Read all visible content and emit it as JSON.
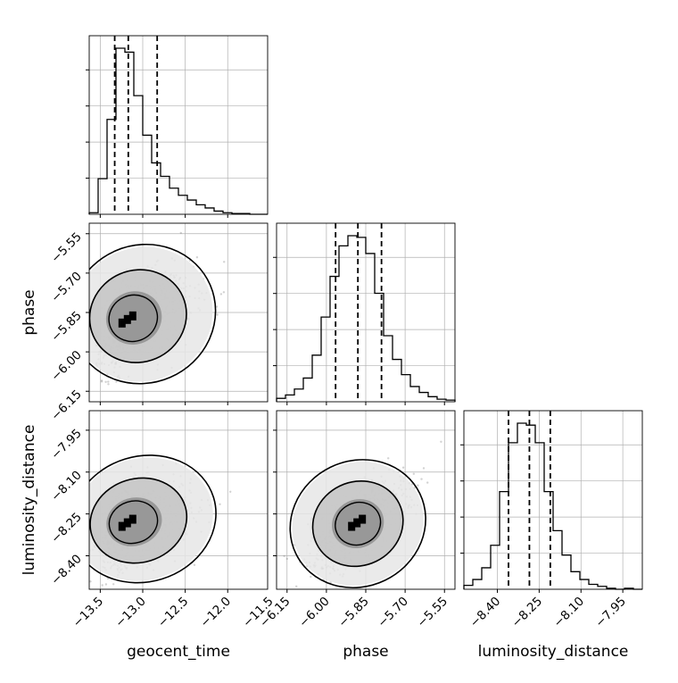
{
  "chart_data": {
    "type": "corner",
    "parameters": [
      "geocent_time",
      "phase",
      "luminosity_distance"
    ],
    "xlabels": [
      "geocent_time",
      "phase",
      "luminosity_distance"
    ],
    "ylabels": [
      "",
      "phase",
      "luminosity_distance"
    ],
    "ranges": [
      [
        -13.63,
        -11.53
      ],
      [
        -6.19,
        -5.51
      ],
      [
        -8.52,
        -7.88
      ]
    ],
    "ticks": [
      {
        "values": [
          -13.5,
          -13.0,
          -12.5,
          -12.0,
          -11.5
        ],
        "labels": [
          "−13.5",
          "−13.0",
          "−12.5",
          "−12.0",
          "−11.5"
        ]
      },
      {
        "values": [
          -6.15,
          -6.0,
          -5.85,
          -5.7,
          -5.55
        ],
        "labels": [
          "−6.15",
          "−6.00",
          "−5.85",
          "−5.70",
          "−5.55"
        ]
      },
      {
        "values": [
          -8.4,
          -8.25,
          -8.1,
          -7.95
        ],
        "labels": [
          "−8.40",
          "−8.25",
          "−8.10",
          "−7.95"
        ]
      }
    ],
    "quantiles": [
      [
        -13.33,
        -13.17,
        -12.83
      ],
      [
        -5.965,
        -5.88,
        -5.79
      ],
      [
        -8.36,
        -8.285,
        -8.21
      ]
    ],
    "histograms": [
      {
        "edges_range": [
          -13.63,
          -11.53
        ],
        "counts": [
          2,
          45,
          120,
          210,
          205,
          150,
          100,
          65,
          48,
          33,
          24,
          18,
          12,
          8,
          4,
          2,
          1,
          1,
          0,
          0
        ]
      },
      {
        "edges_range": [
          -6.19,
          -5.51
        ],
        "counts": [
          4,
          8,
          15,
          28,
          55,
          100,
          148,
          184,
          196,
          194,
          175,
          128,
          78,
          50,
          32,
          18,
          11,
          6,
          3,
          2
        ]
      },
      {
        "edges_range": [
          -8.52,
          -7.88
        ],
        "counts": [
          4,
          10,
          22,
          45,
          100,
          150,
          170,
          168,
          150,
          100,
          60,
          35,
          18,
          10,
          5,
          3,
          1,
          0,
          1,
          0
        ]
      }
    ],
    "grid": true,
    "legend": false,
    "colors": {
      "line": "#000000",
      "grid": "#b0b0b0",
      "scatter": "#7f7f7f",
      "density": [
        "#e6e6e6",
        "#c4c4c4",
        "#8f8f8f",
        "#4a4a4a",
        "#000000"
      ]
    }
  }
}
